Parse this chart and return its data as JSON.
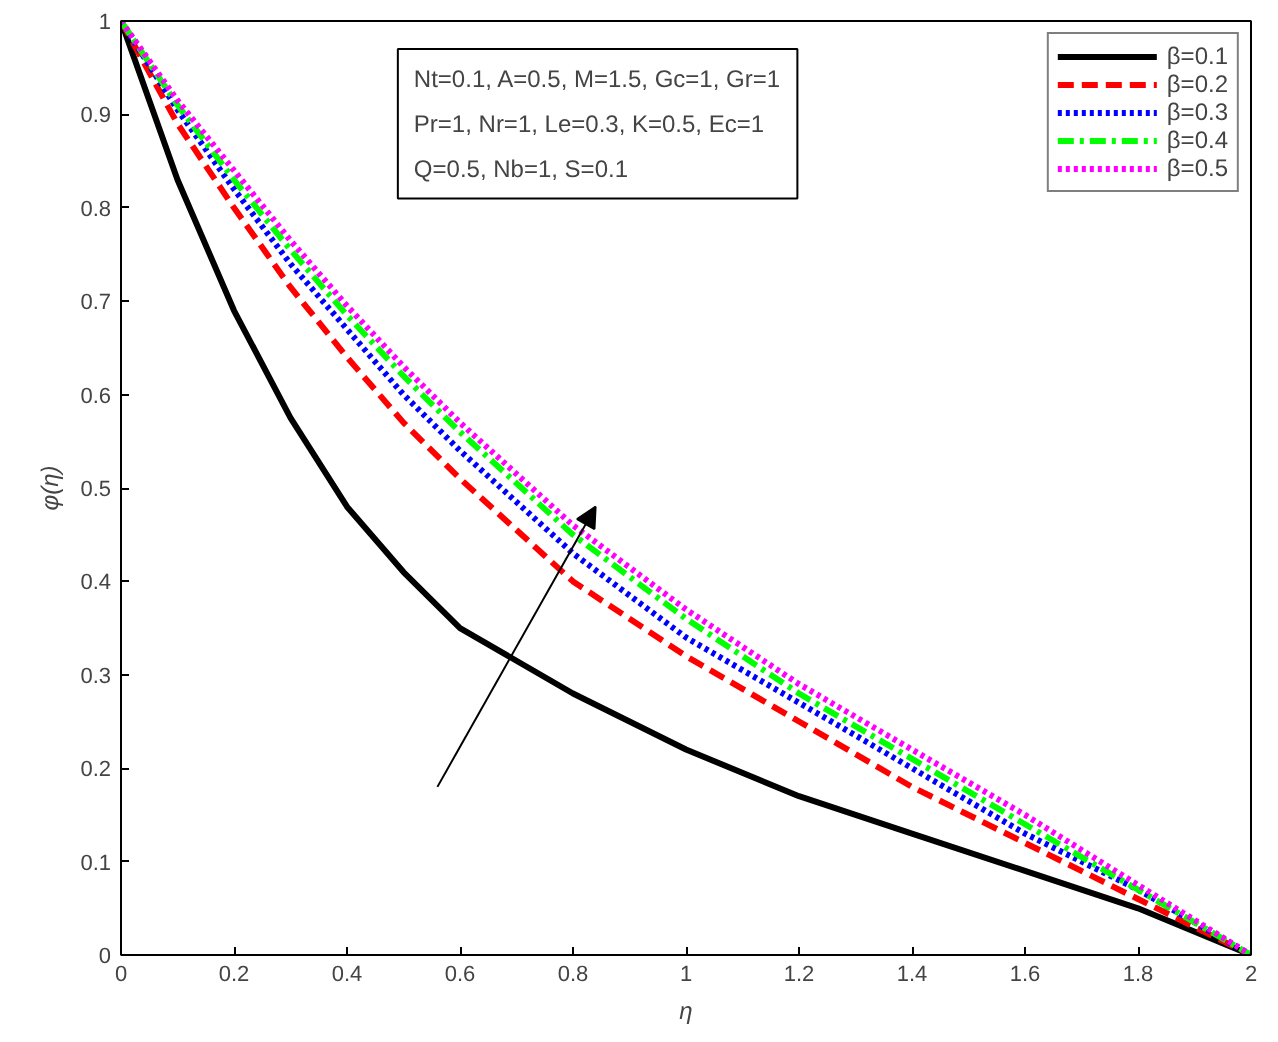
{
  "chart_data": {
    "type": "line",
    "xlabel": "η",
    "ylabel": "φ(η)",
    "x": [
      0,
      0.1,
      0.2,
      0.3,
      0.4,
      0.5,
      0.6,
      0.8,
      1.0,
      1.2,
      1.4,
      1.6,
      1.8,
      2.0
    ],
    "xlim": [
      0,
      2
    ],
    "ylim": [
      0,
      1
    ],
    "xticks": [
      0,
      0.2,
      0.4,
      0.6,
      0.8,
      1,
      1.2,
      1.4,
      1.6,
      1.8,
      2
    ],
    "yticks": [
      0,
      0.1,
      0.2,
      0.3,
      0.4,
      0.5,
      0.6,
      0.7,
      0.8,
      0.9,
      1
    ],
    "grid": false,
    "legend": "top right",
    "series": [
      {
        "name": "β=0.1",
        "color": "#000000",
        "line_style": "solid",
        "values": [
          1,
          0.83,
          0.69,
          0.575,
          0.48,
          0.41,
          0.35,
          0.28,
          0.22,
          0.17,
          0.13,
          0.09,
          0.05,
          0
        ]
      },
      {
        "name": "β=0.2",
        "color": "#ff0000",
        "line_style": "dashed",
        "values": [
          1,
          0.89,
          0.8,
          0.715,
          0.64,
          0.57,
          0.51,
          0.4,
          0.32,
          0.25,
          0.18,
          0.12,
          0.06,
          0
        ]
      },
      {
        "name": "β=0.3",
        "color": "#0000ff",
        "line_style": "dotted",
        "values": [
          1,
          0.905,
          0.82,
          0.74,
          0.67,
          0.6,
          0.54,
          0.43,
          0.34,
          0.27,
          0.2,
          0.13,
          0.07,
          0
        ]
      },
      {
        "name": "β=0.4",
        "color": "#00ff00",
        "line_style": "dashdot",
        "values": [
          1,
          0.91,
          0.83,
          0.755,
          0.685,
          0.62,
          0.56,
          0.45,
          0.36,
          0.28,
          0.21,
          0.14,
          0.07,
          0
        ]
      },
      {
        "name": "β=0.5",
        "color": "#ff00ff",
        "line_style": "dotted",
        "values": [
          1,
          0.915,
          0.84,
          0.765,
          0.695,
          0.63,
          0.57,
          0.46,
          0.37,
          0.29,
          0.22,
          0.15,
          0.075,
          0
        ]
      }
    ],
    "annotations": [
      "Nt=0.1, A=0.5, M=1.5, Gc=1, Gr=1",
      "Pr=1, Nr=1, Le=0.3, K=0.5, Ec=1",
      "Q=0.5, Nb=1, S=0.1"
    ]
  }
}
